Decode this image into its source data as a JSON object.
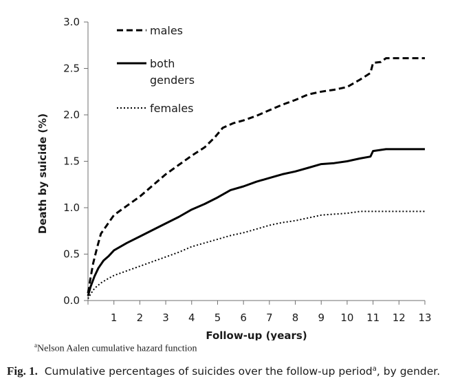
{
  "chart_data": {
    "type": "line",
    "xlabel": "Follow-up (years)",
    "ylabel": "Death by suicide (%)",
    "xlim": [
      0,
      13
    ],
    "ylim": [
      0,
      3.0
    ],
    "x_ticks": [
      "1",
      "2",
      "3",
      "4",
      "5",
      "6",
      "7",
      "8",
      "9",
      "10",
      "11",
      "12",
      "13"
    ],
    "y_ticks": [
      "0.0",
      "0.5",
      "1.0",
      "1.5",
      "2.0",
      "2.5",
      "3.0"
    ],
    "grid": false,
    "legend_position": "top-left",
    "series": [
      {
        "name": "males",
        "style": "dashed",
        "points": [
          [
            0,
            0.08
          ],
          [
            0.1,
            0.25
          ],
          [
            0.2,
            0.4
          ],
          [
            0.35,
            0.57
          ],
          [
            0.5,
            0.72
          ],
          [
            0.7,
            0.8
          ],
          [
            1.0,
            0.92
          ],
          [
            1.5,
            1.02
          ],
          [
            2.0,
            1.12
          ],
          [
            2.5,
            1.24
          ],
          [
            3.0,
            1.36
          ],
          [
            3.5,
            1.46
          ],
          [
            4.0,
            1.56
          ],
          [
            4.5,
            1.65
          ],
          [
            4.9,
            1.76
          ],
          [
            5.2,
            1.86
          ],
          [
            5.6,
            1.91
          ],
          [
            6.0,
            1.94
          ],
          [
            6.5,
            1.99
          ],
          [
            7.0,
            2.05
          ],
          [
            7.5,
            2.11
          ],
          [
            8.0,
            2.16
          ],
          [
            8.5,
            2.22
          ],
          [
            9.0,
            2.25
          ],
          [
            9.5,
            2.27
          ],
          [
            10.0,
            2.3
          ],
          [
            10.5,
            2.38
          ],
          [
            10.9,
            2.45
          ],
          [
            11.0,
            2.56
          ],
          [
            11.3,
            2.57
          ],
          [
            11.5,
            2.61
          ],
          [
            13.0,
            2.61
          ]
        ]
      },
      {
        "name": "both genders",
        "style": "solid",
        "points": [
          [
            0,
            0.05
          ],
          [
            0.1,
            0.15
          ],
          [
            0.25,
            0.26
          ],
          [
            0.4,
            0.35
          ],
          [
            0.6,
            0.43
          ],
          [
            0.8,
            0.48
          ],
          [
            1.0,
            0.54
          ],
          [
            1.5,
            0.62
          ],
          [
            2.0,
            0.69
          ],
          [
            2.5,
            0.76
          ],
          [
            3.0,
            0.83
          ],
          [
            3.5,
            0.9
          ],
          [
            4.0,
            0.98
          ],
          [
            4.5,
            1.04
          ],
          [
            5.0,
            1.11
          ],
          [
            5.5,
            1.19
          ],
          [
            6.0,
            1.23
          ],
          [
            6.5,
            1.28
          ],
          [
            7.0,
            1.32
          ],
          [
            7.5,
            1.36
          ],
          [
            8.0,
            1.39
          ],
          [
            8.5,
            1.43
          ],
          [
            9.0,
            1.47
          ],
          [
            9.5,
            1.48
          ],
          [
            10.0,
            1.5
          ],
          [
            10.5,
            1.53
          ],
          [
            10.9,
            1.55
          ],
          [
            11.0,
            1.61
          ],
          [
            11.5,
            1.63
          ],
          [
            13.0,
            1.63
          ]
        ]
      },
      {
        "name": "females",
        "style": "dotted",
        "points": [
          [
            0,
            0.02
          ],
          [
            0.1,
            0.07
          ],
          [
            0.25,
            0.13
          ],
          [
            0.5,
            0.19
          ],
          [
            0.8,
            0.24
          ],
          [
            1.0,
            0.27
          ],
          [
            1.5,
            0.32
          ],
          [
            2.0,
            0.37
          ],
          [
            2.5,
            0.42
          ],
          [
            3.0,
            0.47
          ],
          [
            3.5,
            0.52
          ],
          [
            4.0,
            0.58
          ],
          [
            4.5,
            0.62
          ],
          [
            5.0,
            0.66
          ],
          [
            5.5,
            0.7
          ],
          [
            6.0,
            0.73
          ],
          [
            6.5,
            0.77
          ],
          [
            7.0,
            0.81
          ],
          [
            7.5,
            0.84
          ],
          [
            8.0,
            0.86
          ],
          [
            8.5,
            0.89
          ],
          [
            9.0,
            0.92
          ],
          [
            9.5,
            0.93
          ],
          [
            10.0,
            0.94
          ],
          [
            10.5,
            0.96
          ],
          [
            11.0,
            0.96
          ],
          [
            13.0,
            0.96
          ]
        ]
      }
    ],
    "legend": [
      {
        "lines": [
          "males"
        ],
        "style": "dashed"
      },
      {
        "lines": [
          "both",
          "genders"
        ],
        "style": "solid"
      },
      {
        "lines": [
          "females"
        ],
        "style": "dotted"
      }
    ]
  },
  "footnote": {
    "marker": "a",
    "text": "Nelson Aalen cumulative hazard function"
  },
  "caption": {
    "label": "Fig. 1.",
    "text_before": "Cumulative percentages of suicides over the follow-up period",
    "marker": "a",
    "text_after": ", by gender."
  }
}
